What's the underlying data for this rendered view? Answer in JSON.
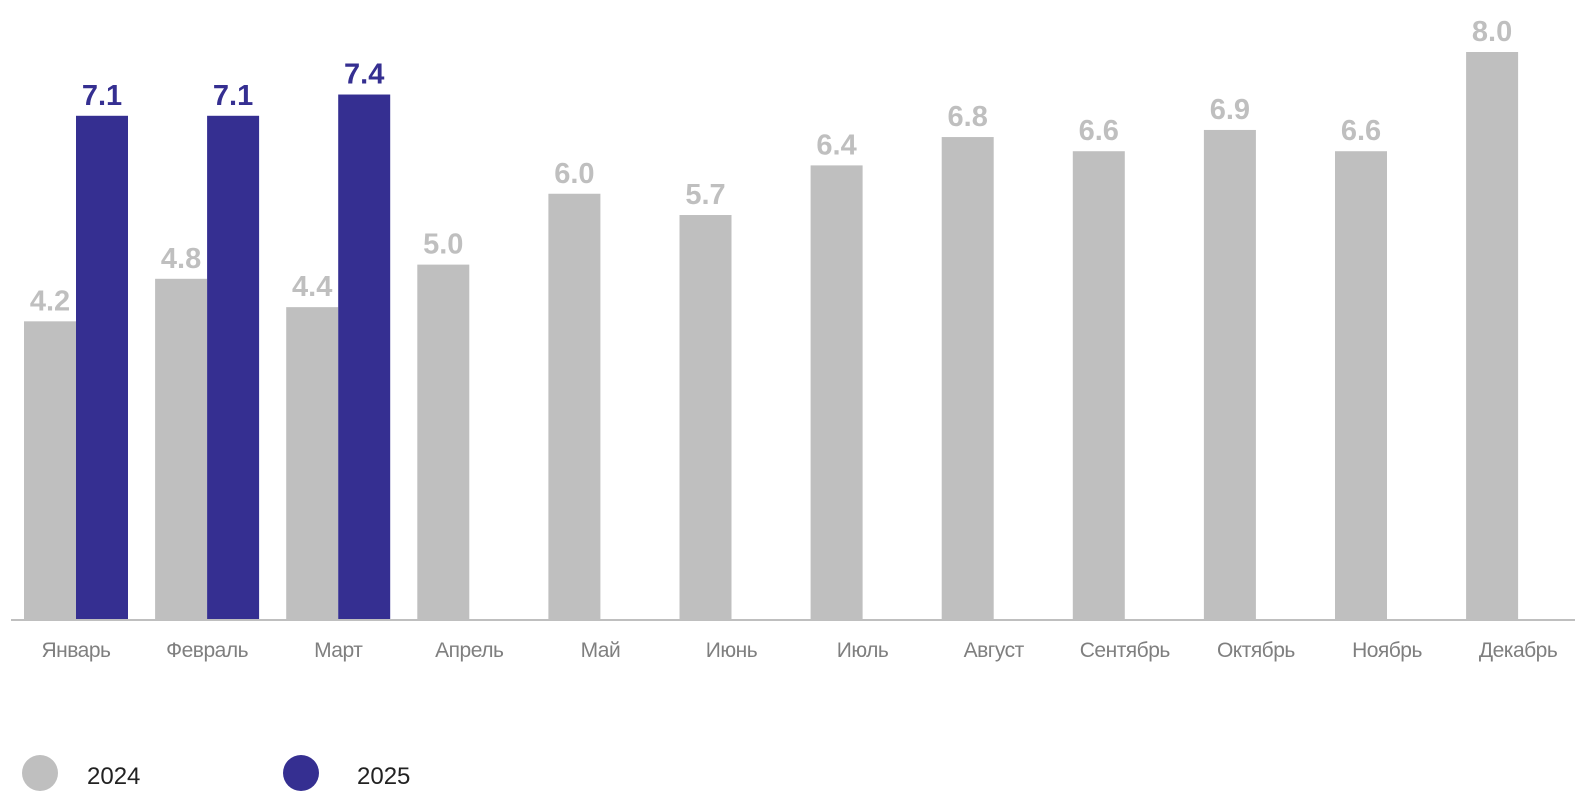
{
  "chart_data": {
    "type": "bar",
    "categories": [
      "Январь",
      "Февраль",
      "Март",
      "Апрель",
      "Май",
      "Июнь",
      "Июль",
      "Август",
      "Сентябрь",
      "Октябрь",
      "Ноябрь",
      "Декабрь"
    ],
    "series": [
      {
        "name": "2024",
        "color": "#bfbfbf",
        "values": [
          4.2,
          4.8,
          4.4,
          5.0,
          6.0,
          5.7,
          6.4,
          6.8,
          6.6,
          6.9,
          6.6,
          8.0
        ],
        "labels": [
          "4.2",
          "4.8",
          "4.4",
          "5.0",
          "6.0",
          "5.7",
          "6.4",
          "6.8",
          "6.6",
          "6.9",
          "6.6",
          "8.0"
        ]
      },
      {
        "name": "2025",
        "color": "#352f91",
        "values": [
          7.1,
          7.1,
          7.4,
          null,
          null,
          null,
          null,
          null,
          null,
          null,
          null,
          null
        ],
        "labels": [
          "7.1",
          "7.1",
          "7.4",
          null,
          null,
          null,
          null,
          null,
          null,
          null,
          null,
          null
        ]
      }
    ],
    "ylim": [
      0,
      8.0
    ],
    "grid": false,
    "legend_position": "bottom-left",
    "axis_color": "#bfbfbf"
  }
}
